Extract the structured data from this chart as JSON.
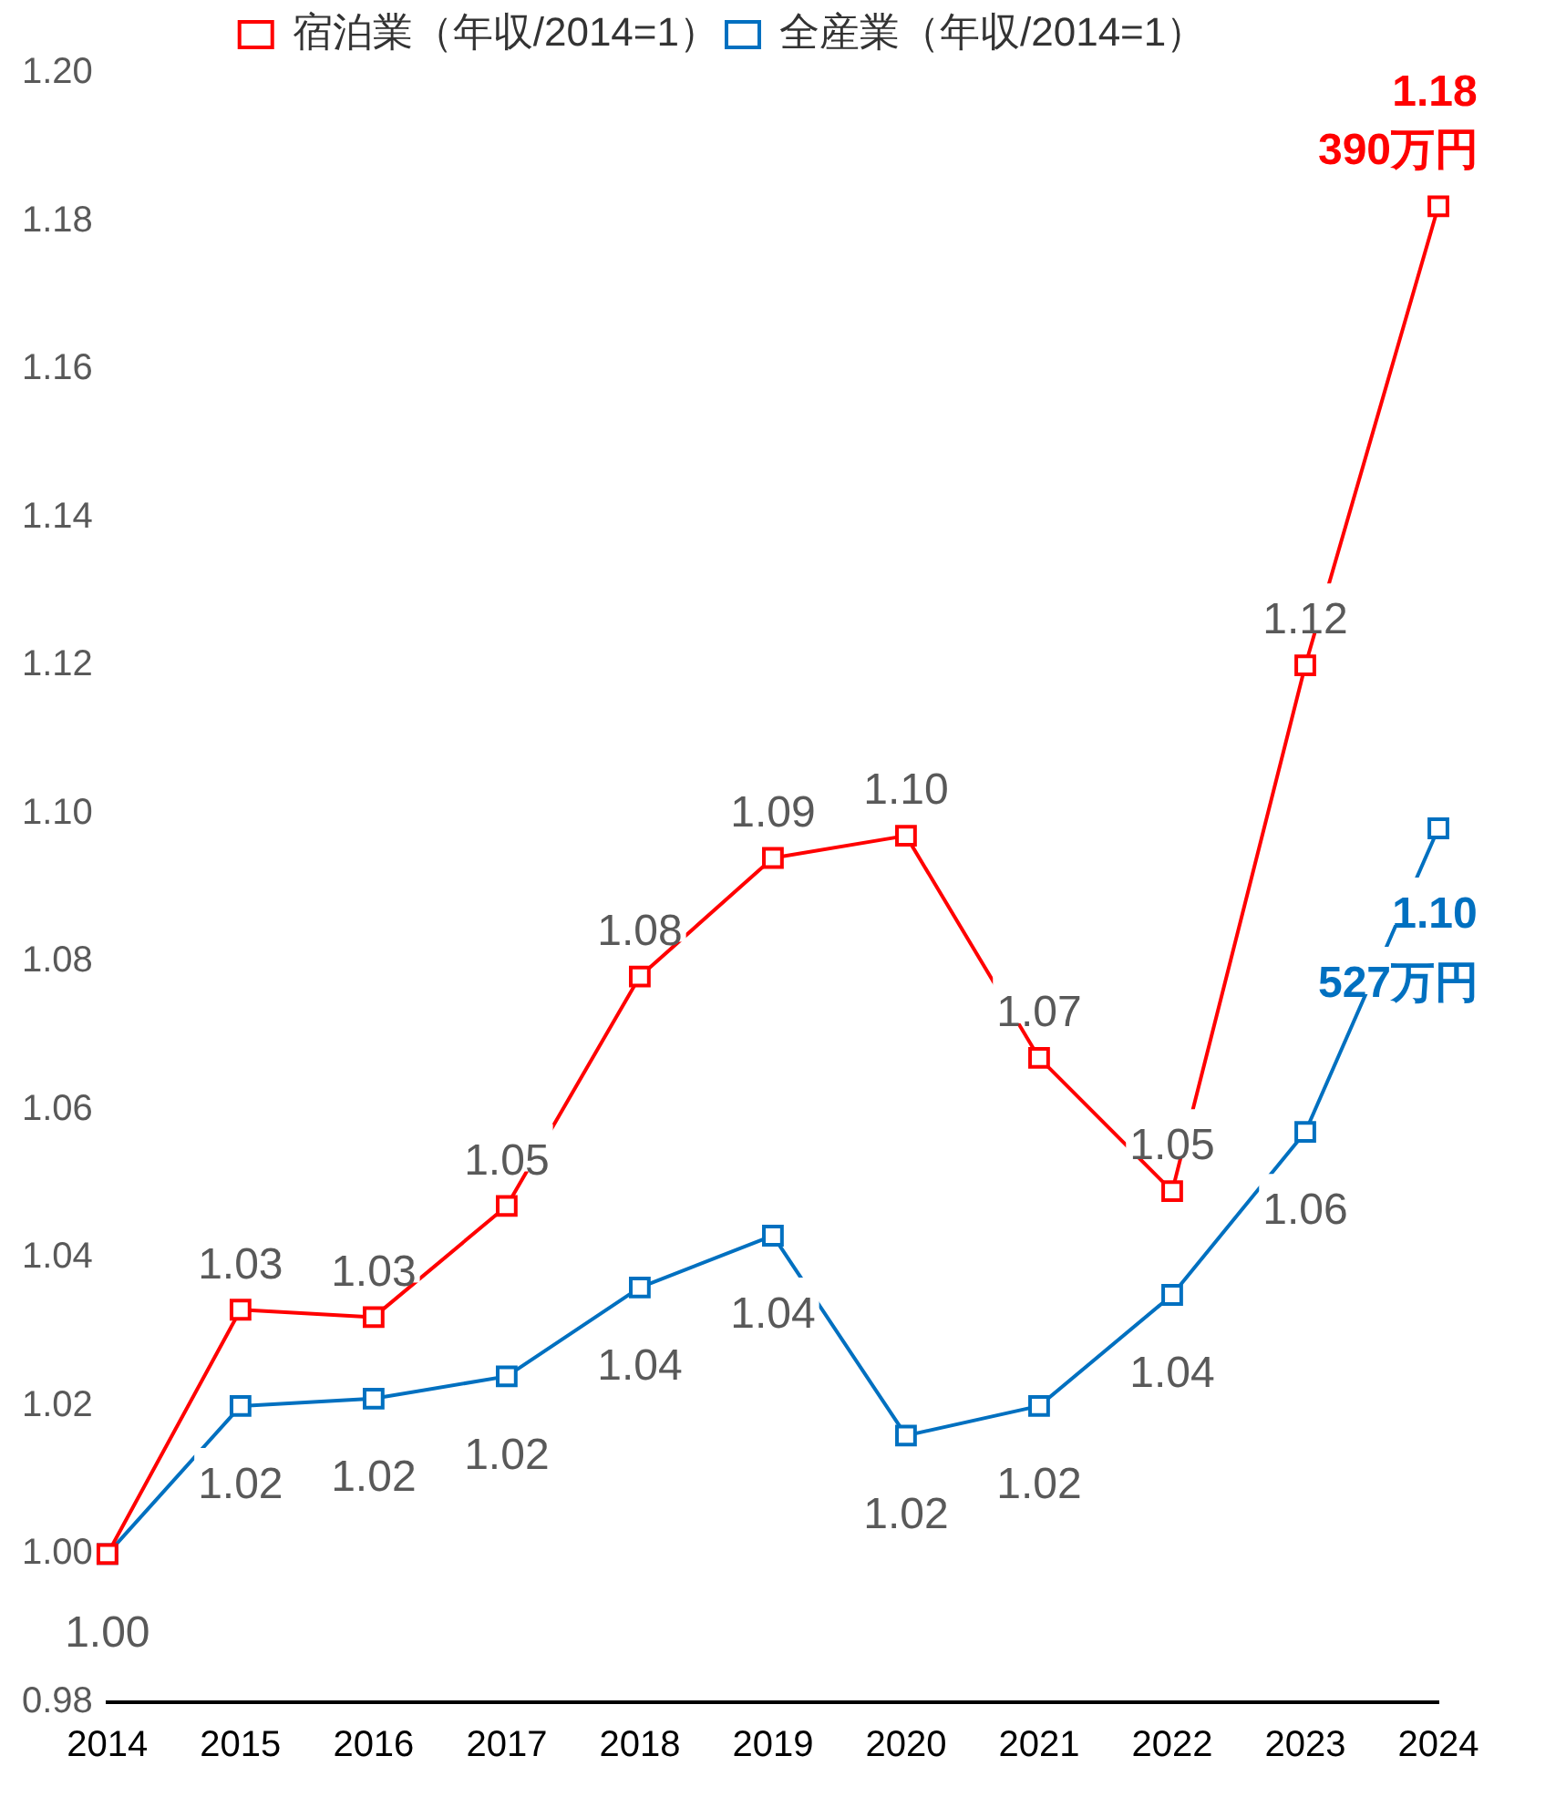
{
  "chart_data": {
    "type": "line",
    "categories": [
      "2014",
      "2015",
      "2016",
      "2017",
      "2018",
      "2019",
      "2020",
      "2021",
      "2022",
      "2023",
      "2024"
    ],
    "series": [
      {
        "name": "宿泊業（年収/2014=1）",
        "color": "#ff0000",
        "values": [
          1.0,
          1.033,
          1.032,
          1.047,
          1.078,
          1.094,
          1.097,
          1.067,
          1.049,
          1.12,
          1.182
        ],
        "value_labels": [
          null,
          "1.03",
          "1.03",
          "1.05",
          "1.08",
          "1.09",
          "1.10",
          "1.07",
          "1.05",
          "1.12",
          "1.18"
        ]
      },
      {
        "name": "全産業（年収/2014=1）",
        "color": "#0070c0",
        "values": [
          1.0,
          1.02,
          1.021,
          1.024,
          1.036,
          1.043,
          1.016,
          1.02,
          1.035,
          1.057,
          1.098
        ],
        "value_labels": [
          "1.00",
          "1.02",
          "1.02",
          "1.02",
          "1.04",
          "1.04",
          "1.02",
          "1.02",
          "1.04",
          "1.06",
          "1.10"
        ]
      }
    ],
    "annotations": [
      "390万円",
      "527万円"
    ],
    "ylim": [
      0.98,
      1.2
    ],
    "yticks": [
      {
        "value": 0.98,
        "label": "0.98"
      },
      {
        "value": 1,
        "label": "1.00"
      },
      {
        "value": 1.02,
        "label": "1.02"
      },
      {
        "value": 1.04,
        "label": "1.04"
      },
      {
        "value": 1.06,
        "label": "1.06"
      },
      {
        "value": 1.08,
        "label": "1.08"
      },
      {
        "value": 1.1,
        "label": "1.10"
      },
      {
        "value": 1.12,
        "label": "1.12"
      },
      {
        "value": 1.14,
        "label": "1.14"
      },
      {
        "value": 1.16,
        "label": "1.16"
      },
      {
        "value": 1.18,
        "label": "1.18"
      },
      {
        "value": 1.2,
        "label": "1.20"
      }
    ],
    "grid": false,
    "legend": "top",
    "marker": "square",
    "line_style": "solid"
  }
}
